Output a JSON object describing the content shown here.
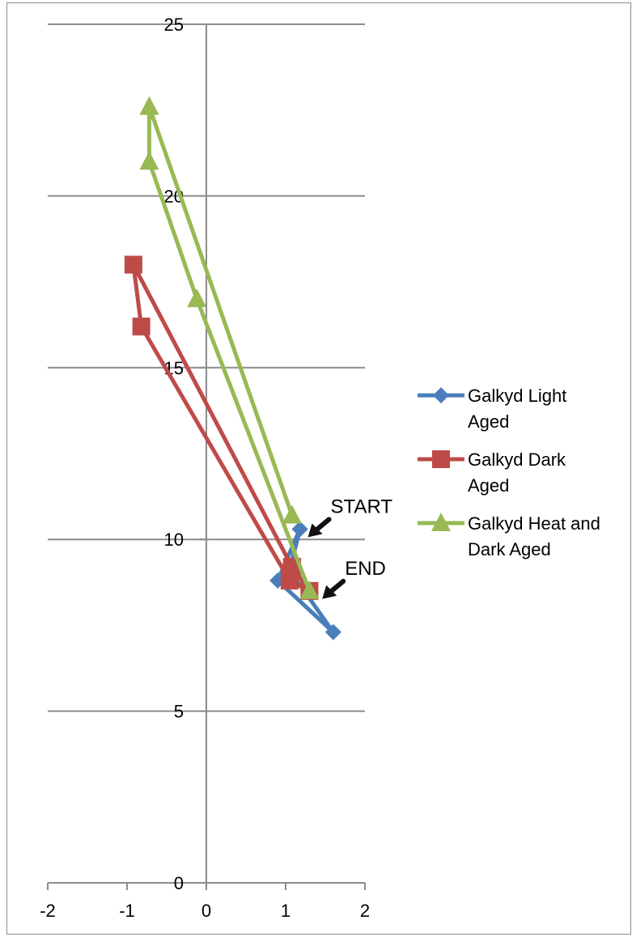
{
  "chart_data": {
    "type": "scatter",
    "title": "",
    "xlabel": "",
    "ylabel": "",
    "xlim": [
      -2,
      2
    ],
    "ylim": [
      0,
      25
    ],
    "x_ticks": [
      "-2",
      "-1",
      "0",
      "1",
      "2"
    ],
    "y_ticks": [
      "0",
      "5",
      "10",
      "15",
      "20",
      "25"
    ],
    "grid": "horizontal major",
    "legend_position": "right",
    "series": [
      {
        "name": "Galkyd Light Aged",
        "name_lines": [
          "Galkyd Light",
          "Aged"
        ],
        "color": "#4a7ebb",
        "marker": "diamond",
        "points": [
          [
            1.18,
            10.3
          ],
          [
            0.9,
            8.8
          ],
          [
            1.6,
            7.3
          ],
          [
            1.05,
            9.1
          ],
          [
            1.18,
            10.3
          ]
        ]
      },
      {
        "name": "Galkyd Dark Aged",
        "name_lines": [
          "Galkyd Dark",
          "Aged"
        ],
        "color": "#be4b48",
        "marker": "square",
        "points": [
          [
            1.08,
            9.2
          ],
          [
            -0.92,
            18.0
          ],
          [
            -0.82,
            16.2
          ],
          [
            1.05,
            8.8
          ],
          [
            1.3,
            8.5
          ],
          [
            1.08,
            9.2
          ]
        ]
      },
      {
        "name": "Galkyd Heat and Dark Aged",
        "name_lines": [
          "Galkyd Heat and",
          "Dark Aged"
        ],
        "color": "#98b954",
        "marker": "triangle",
        "points": [
          [
            1.08,
            10.7
          ],
          [
            -0.72,
            22.6
          ],
          [
            -0.72,
            21.0
          ],
          [
            -0.12,
            17.0
          ],
          [
            1.3,
            8.5
          ]
        ]
      }
    ],
    "annotations": [
      {
        "text": "START",
        "x": 1.22,
        "y": 10.3
      },
      {
        "text": "END",
        "x": 1.4,
        "y": 8.5
      }
    ]
  }
}
